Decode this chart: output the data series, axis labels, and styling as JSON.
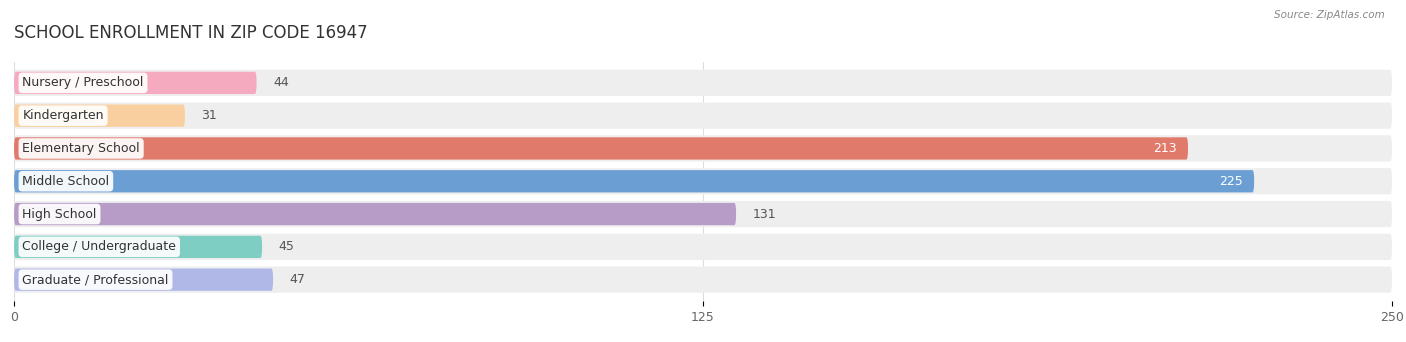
{
  "title": "SCHOOL ENROLLMENT IN ZIP CODE 16947",
  "source": "Source: ZipAtlas.com",
  "categories": [
    "Nursery / Preschool",
    "Kindergarten",
    "Elementary School",
    "Middle School",
    "High School",
    "College / Undergraduate",
    "Graduate / Professional"
  ],
  "values": [
    44,
    31,
    213,
    225,
    131,
    45,
    47
  ],
  "bar_colors": [
    "#f5aabf",
    "#f9cfa0",
    "#e07a6a",
    "#6b9fd4",
    "#b89cc8",
    "#7ecec4",
    "#b0b8e8"
  ],
  "bar_bg_colors": [
    "#eeeeee",
    "#eeeeee",
    "#eeeeee",
    "#eeeeee",
    "#eeeeee",
    "#eeeeee",
    "#eeeeee"
  ],
  "xlim": [
    0,
    250
  ],
  "xticks": [
    0,
    125,
    250
  ],
  "background_color": "#ffffff",
  "title_fontsize": 12,
  "label_fontsize": 9,
  "value_fontsize": 9,
  "figsize": [
    14.06,
    3.42
  ],
  "dpi": 100
}
